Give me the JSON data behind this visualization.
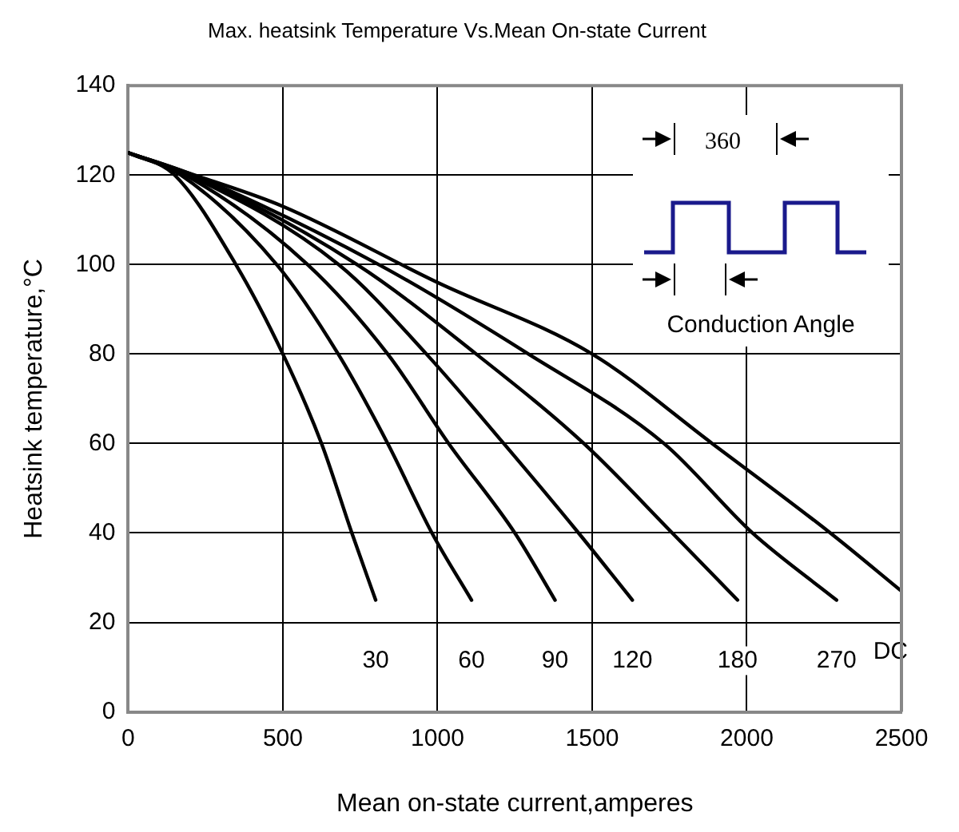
{
  "chart_data": {
    "type": "line",
    "title": "Max. heatsink Temperature Vs.Mean On-state Current",
    "xlabel": "Mean on-state current,amperes",
    "ylabel": "Heatsink temperature,°C",
    "series": [
      {
        "name": "30",
        "color": "#000000",
        "x": [
          0,
          150,
          348,
          500,
          625,
          723,
          800
        ],
        "values": [
          125,
          120,
          100,
          80,
          60,
          40,
          25
        ]
      },
      {
        "name": "60",
        "color": "#000000",
        "x": [
          0,
          170,
          480,
          679,
          839,
          982,
          1110
        ],
        "values": [
          125,
          120,
          100,
          80,
          60,
          40,
          25
        ]
      },
      {
        "name": "90",
        "color": "#000000",
        "x": [
          0,
          185,
          580,
          839,
          1036,
          1250,
          1380
        ],
        "values": [
          125,
          120,
          100,
          80,
          60,
          40,
          25
        ]
      },
      {
        "name": "120",
        "color": "#000000",
        "x": [
          0,
          195,
          680,
          964,
          1214,
          1456,
          1630
        ],
        "values": [
          125,
          120,
          100,
          80,
          60,
          40,
          25
        ]
      },
      {
        "name": "180",
        "color": "#000000",
        "x": [
          0,
          205,
          740,
          1125,
          1473,
          1759,
          1970
        ],
        "values": [
          125,
          120,
          100,
          80,
          60,
          40,
          25
        ]
      },
      {
        "name": "270",
        "color": "#000000",
        "x": [
          0,
          210,
          810,
          1294,
          1732,
          2018,
          2290
        ],
        "values": [
          125,
          120,
          100,
          80,
          60,
          40,
          25
        ]
      },
      {
        "name": "DC",
        "color": "#000000",
        "x": [
          0,
          215,
          500,
          1000,
          1500,
          1888,
          2270,
          2500
        ],
        "values": [
          125,
          120,
          113,
          96,
          80,
          60,
          40,
          27
        ]
      }
    ],
    "xlim": [
      0,
      2500
    ],
    "xticks": [
      0,
      500,
      1000,
      1500,
      2000,
      2500
    ],
    "ylim": [
      0,
      140
    ],
    "yticks": [
      0,
      20,
      40,
      60,
      80,
      100,
      120,
      140
    ],
    "grid": true,
    "legend": false,
    "marker": "none",
    "line_style": "solid",
    "annotations": [
      "360",
      "Conduction Angle"
    ]
  }
}
